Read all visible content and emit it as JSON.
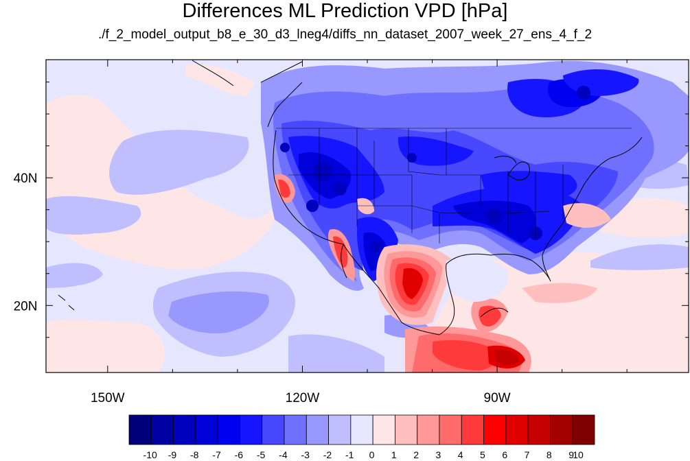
{
  "title": "Differences ML Prediction VPD [hPa]",
  "subtitle": "./f_2_model_output_b8_e_30_d3_lneg4/diffs_nn_dataset_2007_week_27_ens_4_f_2",
  "map": {
    "lon_range": [
      -159.5,
      -60.5
    ],
    "lat_range": [
      9.5,
      58.5
    ],
    "lon_ticks": [
      {
        "label": "150W",
        "lon": -150
      },
      {
        "label": "120W",
        "lon": -120
      },
      {
        "label": "90W",
        "lon": -90
      }
    ],
    "lat_ticks": [
      {
        "label": "40N",
        "lat": 40
      },
      {
        "label": "20N",
        "lat": 20
      }
    ],
    "minor_lon_ticks": [
      -140,
      -130,
      -110,
      -100,
      -80,
      -70
    ],
    "minor_lat_ticks": [
      15,
      25,
      30,
      35,
      45,
      50,
      55
    ]
  },
  "colorbar": {
    "labels": [
      "-10",
      "-9",
      "-8",
      "-7",
      "-6",
      "-5",
      "-4",
      "-3",
      "-2",
      "-1",
      "0",
      "1",
      "2",
      "3",
      "4",
      "5",
      "6",
      "7",
      "8",
      "9",
      "10"
    ],
    "colors": [
      "#00007a",
      "#0000a0",
      "#0000bf",
      "#0000d9",
      "#0000f0",
      "#1515ff",
      "#4848ff",
      "#7070ff",
      "#9898ff",
      "#bfbfff",
      "#e6e6ff",
      "#ffe6e6",
      "#ffbfbf",
      "#ff9898",
      "#ff6a6a",
      "#ff3a3a",
      "#ff0000",
      "#e00000",
      "#c40000",
      "#a40000",
      "#7e0000"
    ]
  }
}
